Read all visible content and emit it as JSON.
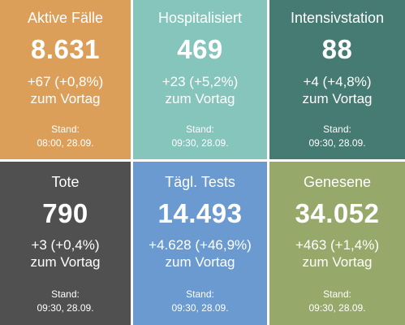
{
  "cards": [
    {
      "title": "Aktive Fälle",
      "value": "8.631",
      "change": "+67 (+0,8%)",
      "change_suffix": "zum Vortag",
      "stand_label": "Stand:",
      "stand_time": "08:00, 28.09.",
      "color": "#dc9f5a"
    },
    {
      "title": "Hospitalisiert",
      "value": "469",
      "change": "+23 (+5,2%)",
      "change_suffix": "zum Vortag",
      "stand_label": "Stand:",
      "stand_time": "09:30, 28.09.",
      "color": "#86c5bb"
    },
    {
      "title": "Intensivstation",
      "value": "88",
      "change": "+4 (+4,8%)",
      "change_suffix": "zum Vortag",
      "stand_label": "Stand:",
      "stand_time": "09:30, 28.09.",
      "color": "#457b72"
    },
    {
      "title": "Tote",
      "value": "790",
      "change": "+3 (+0,4%)",
      "change_suffix": "zum Vortag",
      "stand_label": "Stand:",
      "stand_time": "09:30, 28.09.",
      "color": "#505050"
    },
    {
      "title": "Tägl. Tests",
      "value": "14.493",
      "change": "+4.628 (+46,9%)",
      "change_suffix": "zum Vortag",
      "stand_label": "Stand:",
      "stand_time": "09:30, 28.09.",
      "color": "#6a9ad0"
    },
    {
      "title": "Genesene",
      "value": "34.052",
      "change": "+463 (+1,4%)",
      "change_suffix": "zum Vortag",
      "stand_label": "Stand:",
      "stand_time": "09:30, 28.09.",
      "color": "#96a96a"
    }
  ]
}
